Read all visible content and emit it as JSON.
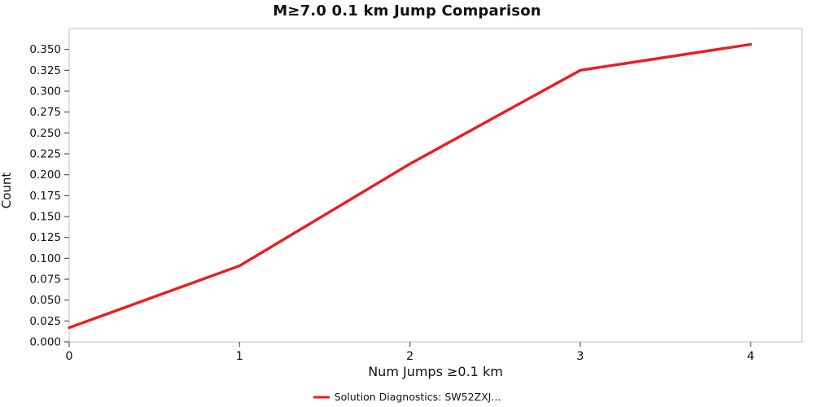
{
  "chart_data": {
    "type": "line",
    "title": "M≥7.0 0.1 km Jump Comparison",
    "xlabel": "Num Jumps ≥0.1 km",
    "ylabel": "Count",
    "x": [
      0,
      1,
      2,
      3,
      4
    ],
    "series": [
      {
        "name": "Solution Diagnostics: SW52ZXJ...",
        "values": [
          0.017,
          0.091,
          0.213,
          0.325,
          0.356
        ],
        "color": "#ed1c1c"
      }
    ],
    "xticks": [
      "0",
      "1",
      "2",
      "3",
      "4"
    ],
    "yticks": [
      "0.000",
      "0.025",
      "0.050",
      "0.075",
      "0.100",
      "0.125",
      "0.150",
      "0.175",
      "0.200",
      "0.225",
      "0.250",
      "0.275",
      "0.300",
      "0.325",
      "0.350"
    ],
    "xlim": [
      0,
      4.3
    ],
    "ylim": [
      0,
      0.375
    ],
    "grid": false,
    "legend_position": "bottom-center",
    "plot_border_color": "#cccccc",
    "tick_color": "#555555"
  },
  "legend": {
    "label": "Solution Diagnostics: SW52ZXJ..."
  }
}
